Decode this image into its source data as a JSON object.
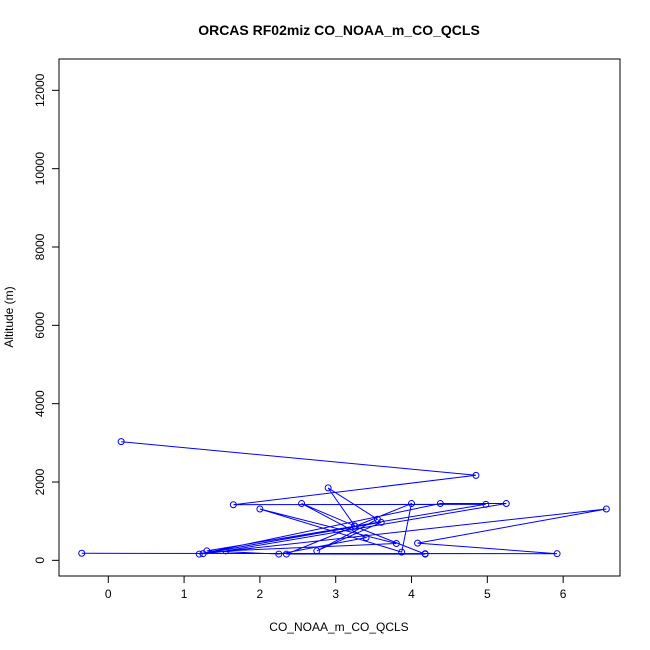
{
  "chart_data": {
    "type": "line",
    "title": "ORCAS RF02miz CO_NOAA_m_CO_QCLS",
    "xlabel": "CO_NOAA_m_CO_QCLS",
    "ylabel": "Altitude (m)",
    "xlim": [
      -0.65,
      6.75
    ],
    "ylim": [
      -400,
      12800
    ],
    "x_ticks": [
      0,
      1,
      2,
      3,
      4,
      5,
      6
    ],
    "y_ticks": [
      0,
      2000,
      4000,
      6000,
      8000,
      10000,
      12000
    ],
    "grid": false,
    "legend": "none",
    "color": "#0000ff",
    "markers": "open-circle",
    "series": [
      {
        "points": [
          {
            "x": 0.17,
            "y": 3030
          },
          {
            "x": 4.85,
            "y": 2170
          },
          {
            "x": 1.65,
            "y": 1420
          },
          {
            "x": 4.98,
            "y": 1430
          },
          {
            "x": 1.3,
            "y": 240
          },
          {
            "x": 2.25,
            "y": 160
          },
          {
            "x": 3.4,
            "y": 580
          },
          {
            "x": 2.55,
            "y": 1450
          },
          {
            "x": 3.25,
            "y": 880
          },
          {
            "x": 2.9,
            "y": 1850
          },
          {
            "x": 3.55,
            "y": 1050
          },
          {
            "x": 2.75,
            "y": 240
          },
          {
            "x": 3.6,
            "y": 970
          },
          {
            "x": 1.2,
            "y": 160
          },
          {
            "x": 4.38,
            "y": 1450
          },
          {
            "x": 5.25,
            "y": 1450
          },
          {
            "x": 1.55,
            "y": 240
          },
          {
            "x": 3.8,
            "y": 430
          },
          {
            "x": 2.0,
            "y": 1310
          },
          {
            "x": 3.87,
            "y": 210
          },
          {
            "x": 4.0,
            "y": 1450
          },
          {
            "x": 2.35,
            "y": 160
          },
          {
            "x": 4.18,
            "y": 160
          },
          {
            "x": 3.25,
            "y": 870
          },
          {
            "x": 1.25,
            "y": 170
          },
          {
            "x": 6.57,
            "y": 1310
          },
          {
            "x": 4.08,
            "y": 440
          },
          {
            "x": 5.92,
            "y": 170
          },
          {
            "x": -0.35,
            "y": 180
          },
          {
            "x": 4.18,
            "y": 170
          }
        ]
      }
    ]
  }
}
